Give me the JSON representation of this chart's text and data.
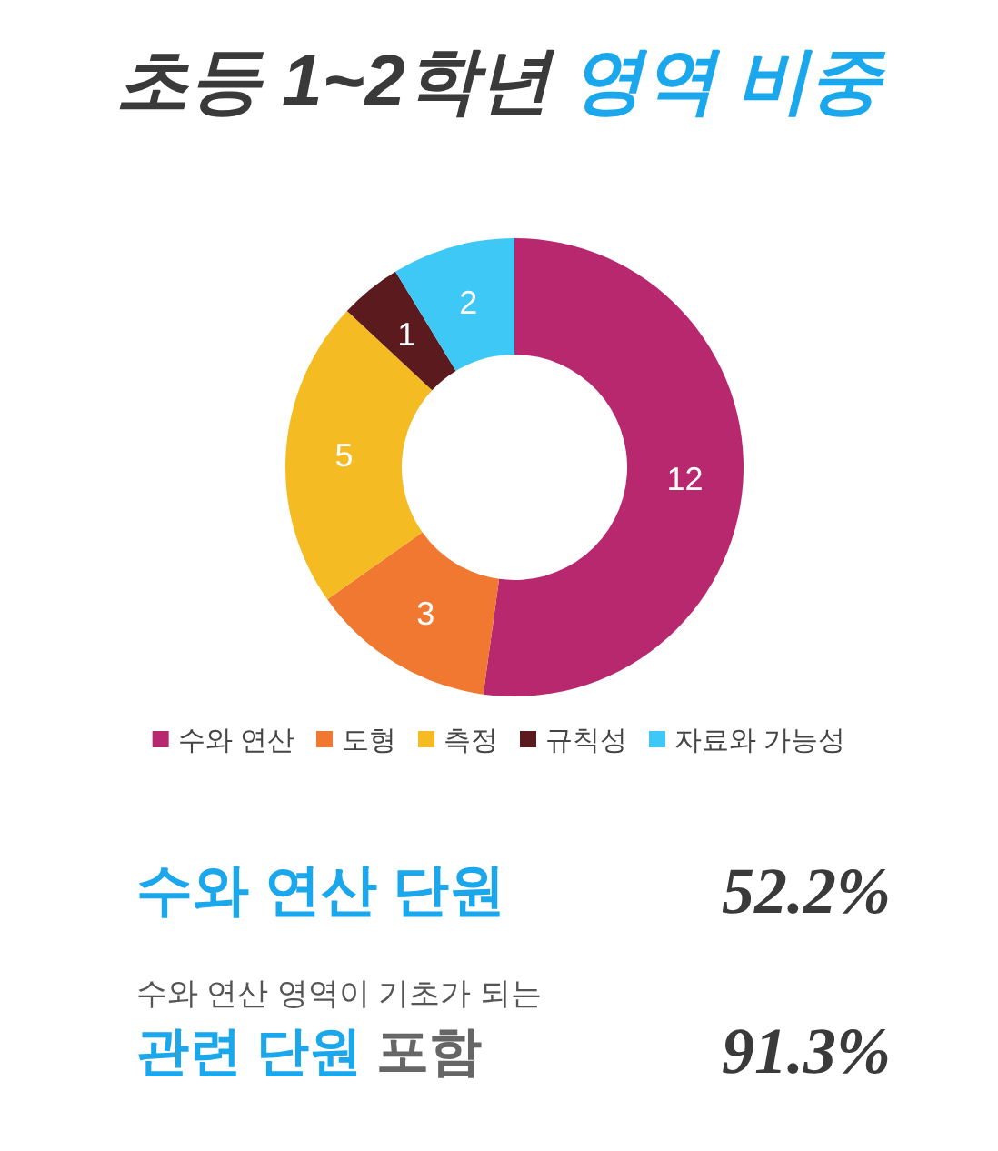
{
  "chart_data": {
    "type": "donut",
    "title": "초등 1~2학년 영역 비중",
    "categories": [
      "수와 연산",
      "도형",
      "측정",
      "규칙성",
      "자료와 가능성"
    ],
    "values": [
      12,
      3,
      5,
      1,
      2
    ],
    "colors": [
      "#b8286f",
      "#f07830",
      "#f5bb22",
      "#5a1a1e",
      "#3ec8f5"
    ],
    "data_labels": true,
    "legend": "bottom",
    "annotations": [
      "수와 연산 단원",
      "52.2%",
      "수와 연산 영역이 기초가 되는",
      "관련 단원 포함",
      "91.3%"
    ]
  }
}
